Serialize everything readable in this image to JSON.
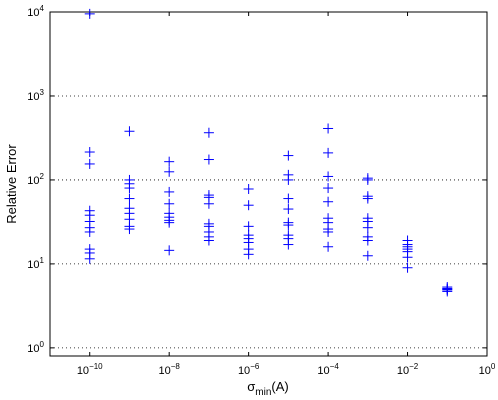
{
  "chart_data": {
    "type": "scatter",
    "xlabel": {
      "base": "σ",
      "sub": "min",
      "suffix": "(A)"
    },
    "ylabel": "Relative Error",
    "x_scale": "log",
    "y_scale": "log",
    "xlim": [
      1e-11,
      1
    ],
    "ylim": [
      0.8,
      10000
    ],
    "x_ticks": [
      {
        "value": 1e-10,
        "base": "10",
        "exp": "−10"
      },
      {
        "value": 1e-08,
        "base": "10",
        "exp": "−8"
      },
      {
        "value": 1e-06,
        "base": "10",
        "exp": "−6"
      },
      {
        "value": 0.0001,
        "base": "10",
        "exp": "−4"
      },
      {
        "value": 0.01,
        "base": "10",
        "exp": "−2"
      },
      {
        "value": 1,
        "base": "10",
        "exp": "0"
      }
    ],
    "y_ticks": [
      {
        "value": 1,
        "base": "10",
        "exp": "0"
      },
      {
        "value": 10,
        "base": "10",
        "exp": "1"
      },
      {
        "value": 100,
        "base": "10",
        "exp": "2"
      },
      {
        "value": 1000,
        "base": "10",
        "exp": "3"
      },
      {
        "value": 10000,
        "base": "10",
        "exp": "4"
      }
    ],
    "grid": "y-dotted",
    "marker": "+",
    "marker_color": "#0000ff",
    "points": [
      {
        "x": 1e-10,
        "y": 9500
      },
      {
        "x": 1e-10,
        "y": 215
      },
      {
        "x": 1e-10,
        "y": 155
      },
      {
        "x": 1e-10,
        "y": 43
      },
      {
        "x": 1e-10,
        "y": 38
      },
      {
        "x": 1e-10,
        "y": 32
      },
      {
        "x": 1e-10,
        "y": 27
      },
      {
        "x": 1e-10,
        "y": 24
      },
      {
        "x": 1e-10,
        "y": 15
      },
      {
        "x": 1e-10,
        "y": 13.5
      },
      {
        "x": 1e-10,
        "y": 11.5
      },
      {
        "x": 1e-09,
        "y": 380
      },
      {
        "x": 1e-09,
        "y": 100
      },
      {
        "x": 1e-09,
        "y": 90
      },
      {
        "x": 1e-09,
        "y": 80
      },
      {
        "x": 1e-09,
        "y": 60
      },
      {
        "x": 1e-09,
        "y": 46
      },
      {
        "x": 1e-09,
        "y": 40
      },
      {
        "x": 1e-09,
        "y": 34
      },
      {
        "x": 1e-09,
        "y": 28
      },
      {
        "x": 1e-09,
        "y": 26
      },
      {
        "x": 1e-08,
        "y": 165
      },
      {
        "x": 1e-08,
        "y": 125
      },
      {
        "x": 1e-08,
        "y": 72
      },
      {
        "x": 1e-08,
        "y": 52
      },
      {
        "x": 1e-08,
        "y": 40
      },
      {
        "x": 1e-08,
        "y": 36
      },
      {
        "x": 1e-08,
        "y": 33
      },
      {
        "x": 1e-08,
        "y": 31
      },
      {
        "x": 1e-08,
        "y": 14.5
      },
      {
        "x": 1e-07,
        "y": 365
      },
      {
        "x": 1e-07,
        "y": 175
      },
      {
        "x": 1e-07,
        "y": 66
      },
      {
        "x": 1e-07,
        "y": 62
      },
      {
        "x": 1e-07,
        "y": 52
      },
      {
        "x": 1e-07,
        "y": 30
      },
      {
        "x": 1e-07,
        "y": 28
      },
      {
        "x": 1e-07,
        "y": 24
      },
      {
        "x": 1e-07,
        "y": 21
      },
      {
        "x": 1e-07,
        "y": 19
      },
      {
        "x": 1e-06,
        "y": 78
      },
      {
        "x": 1e-06,
        "y": 50
      },
      {
        "x": 1e-06,
        "y": 28
      },
      {
        "x": 1e-06,
        "y": 22
      },
      {
        "x": 1e-06,
        "y": 20
      },
      {
        "x": 1e-06,
        "y": 18
      },
      {
        "x": 1e-06,
        "y": 15
      },
      {
        "x": 1e-06,
        "y": 13
      },
      {
        "x": 1e-05,
        "y": 195
      },
      {
        "x": 1e-05,
        "y": 115
      },
      {
        "x": 1e-05,
        "y": 100
      },
      {
        "x": 1e-05,
        "y": 60
      },
      {
        "x": 1e-05,
        "y": 45
      },
      {
        "x": 1e-05,
        "y": 31
      },
      {
        "x": 1e-05,
        "y": 29
      },
      {
        "x": 1e-05,
        "y": 22
      },
      {
        "x": 1e-05,
        "y": 20
      },
      {
        "x": 1e-05,
        "y": 17
      },
      {
        "x": 0.0001,
        "y": 410
      },
      {
        "x": 0.0001,
        "y": 210
      },
      {
        "x": 0.0001,
        "y": 110
      },
      {
        "x": 0.0001,
        "y": 80
      },
      {
        "x": 0.0001,
        "y": 55
      },
      {
        "x": 0.0001,
        "y": 35
      },
      {
        "x": 0.0001,
        "y": 31
      },
      {
        "x": 0.0001,
        "y": 26
      },
      {
        "x": 0.0001,
        "y": 24
      },
      {
        "x": 0.0001,
        "y": 16
      },
      {
        "x": 0.001,
        "y": 105
      },
      {
        "x": 0.001,
        "y": 100
      },
      {
        "x": 0.001,
        "y": 64
      },
      {
        "x": 0.001,
        "y": 60
      },
      {
        "x": 0.001,
        "y": 35
      },
      {
        "x": 0.001,
        "y": 32
      },
      {
        "x": 0.001,
        "y": 27
      },
      {
        "x": 0.001,
        "y": 21
      },
      {
        "x": 0.001,
        "y": 19
      },
      {
        "x": 0.001,
        "y": 12.5
      },
      {
        "x": 0.01,
        "y": 19
      },
      {
        "x": 0.01,
        "y": 17
      },
      {
        "x": 0.01,
        "y": 16
      },
      {
        "x": 0.01,
        "y": 15
      },
      {
        "x": 0.01,
        "y": 14
      },
      {
        "x": 0.01,
        "y": 12
      },
      {
        "x": 0.01,
        "y": 9
      },
      {
        "x": 0.1,
        "y": 5.3
      },
      {
        "x": 0.1,
        "y": 5.1
      },
      {
        "x": 0.1,
        "y": 5.0
      },
      {
        "x": 0.1,
        "y": 4.9
      },
      {
        "x": 0.1,
        "y": 4.7
      }
    ]
  }
}
